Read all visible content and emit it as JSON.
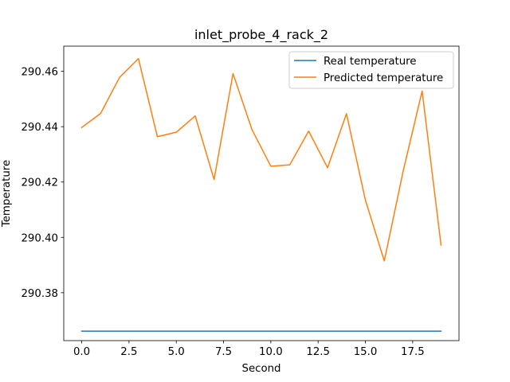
{
  "chart_data": {
    "type": "line",
    "title": "inlet_probe_4_rack_2",
    "xlabel": "Second",
    "ylabel": "Temperature",
    "xlim": [
      -0.95,
      19.95
    ],
    "ylim": [
      290.3627,
      290.4691
    ],
    "x_ticks": [
      0.0,
      2.5,
      5.0,
      7.5,
      10.0,
      12.5,
      15.0,
      17.5
    ],
    "x_tick_labels": [
      "0.0",
      "2.5",
      "5.0",
      "7.5",
      "10.0",
      "12.5",
      "15.0",
      "17.5"
    ],
    "y_ticks": [
      290.38,
      290.4,
      290.42,
      290.44,
      290.46
    ],
    "y_tick_labels": [
      "290.38",
      "290.40",
      "290.42",
      "290.44",
      "290.46"
    ],
    "grid": false,
    "legend_position": "upper right",
    "x": [
      0,
      1,
      2,
      3,
      4,
      5,
      6,
      7,
      8,
      9,
      10,
      11,
      12,
      13,
      14,
      15,
      16,
      17,
      18,
      19
    ],
    "series": [
      {
        "name": "Real temperature",
        "color": "#1f77b4",
        "values": [
          290.3661,
          290.3661,
          290.3661,
          290.3661,
          290.3661,
          290.3661,
          290.3661,
          290.3661,
          290.3661,
          290.3661,
          290.3661,
          290.3661,
          290.3661,
          290.3661,
          290.3661,
          290.3661,
          290.3661,
          290.3661,
          290.3661,
          290.3661
        ]
      },
      {
        "name": "Predicted temperature",
        "color": "#ff7f0e",
        "values": [
          290.4397,
          290.4448,
          290.4578,
          290.4646,
          290.4364,
          290.438,
          290.4439,
          290.4209,
          290.4592,
          290.439,
          290.4257,
          290.4262,
          290.4384,
          290.4252,
          290.4447,
          290.4135,
          290.3915,
          290.424,
          290.4529,
          290.3972
        ]
      }
    ]
  }
}
